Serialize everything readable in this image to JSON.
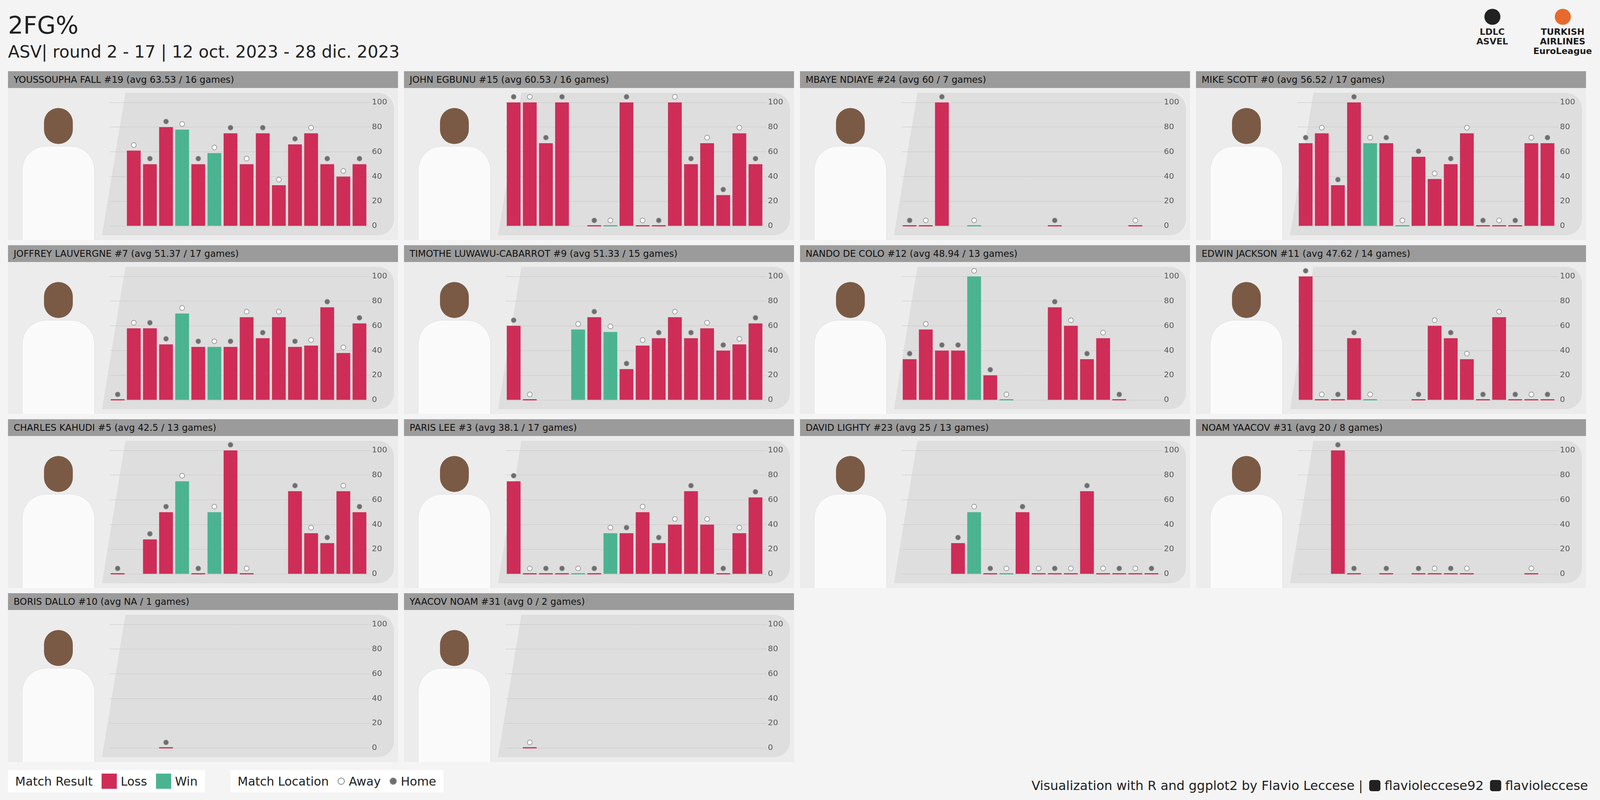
{
  "title": "2FG%",
  "subtitle": "ASV| round 2 - 17 | 12 oct. 2023 - 28 dic. 2023",
  "logos": [
    [
      "LDLC",
      "ASVEL"
    ],
    [
      "TURKISH",
      "AIRLINES",
      "EuroLeague"
    ]
  ],
  "legend_groups": [
    {
      "title": "Match Result",
      "items": [
        {
          "label": "Loss",
          "color": "#CE2D57"
        },
        {
          "label": "Win",
          "color": "#4CB391"
        }
      ]
    },
    {
      "title": "Match Location",
      "items": [
        {
          "label": "Away",
          "marker": "open"
        },
        {
          "label": "Home",
          "marker": "filled"
        }
      ]
    }
  ],
  "caption": {
    "text": "Visualization with R and ggplot2 by Flavio Leccese |",
    "links": [
      "flavioleccese92",
      "flavioleccese"
    ]
  },
  "chart_data": [
    {
      "type": "bar",
      "title": "YOUSSOUPHA FALL #19 (avg 63.53 / 16 games)",
      "categories": [
        null,
        null,
        null,
        null,
        null,
        null,
        null,
        null,
        null,
        null,
        null,
        null,
        null,
        null,
        null,
        null
      ],
      "values": [
        null,
        61,
        50,
        80,
        78,
        50,
        59,
        75,
        50,
        75,
        33,
        66,
        75,
        50,
        40,
        50
      ],
      "colors": [
        null,
        "#CE2D57",
        "#CE2D57",
        "#CE2D57",
        "#4CB391",
        "#CE2D57",
        "#4CB391",
        "#CE2D57",
        "#CE2D57",
        "#CE2D57",
        "#CE2D57",
        "#CE2D57",
        "#CE2D57",
        "#CE2D57",
        "#CE2D57",
        "#CE2D57"
      ],
      "locations": [
        null,
        "Away",
        "Home",
        "Home",
        "Away",
        "Home",
        "Away",
        "Home",
        "Away",
        "Home",
        "Away",
        "Home",
        "Away",
        "Home",
        "Away",
        "Home"
      ],
      "ylim": [
        0,
        100
      ],
      "yticks": [
        0,
        20,
        40,
        60,
        80,
        100
      ],
      "grid": true,
      "tick_labels": "y"
    },
    {
      "type": "bar",
      "title": "JOHN EGBUNU #15 (avg 60.53 / 16 games)",
      "categories": [
        null,
        null,
        null,
        null,
        null,
        null,
        null,
        null,
        null,
        null,
        null,
        null,
        null,
        null,
        null,
        null
      ],
      "values": [
        100,
        100,
        67,
        100,
        null,
        0,
        0,
        100,
        0,
        0,
        100,
        50,
        67,
        25,
        75,
        50
      ],
      "colors": [
        "#CE2D57",
        "#CE2D57",
        "#CE2D57",
        "#CE2D57",
        null,
        "#CE2D57",
        "#4CB391",
        "#CE2D57",
        "#CE2D57",
        "#CE2D57",
        "#CE2D57",
        "#CE2D57",
        "#CE2D57",
        "#CE2D57",
        "#CE2D57",
        "#CE2D57"
      ],
      "locations": [
        "Home",
        "Away",
        "Home",
        "Home",
        null,
        "Home",
        "Away",
        "Home",
        "Away",
        "Home",
        "Away",
        "Home",
        "Away",
        "Home",
        "Away",
        "Home"
      ],
      "ylim": [
        0,
        100
      ],
      "yticks": [
        0,
        20,
        40,
        60,
        80,
        100
      ],
      "grid": true,
      "tick_labels": "y"
    },
    {
      "type": "bar",
      "title": "MBAYE NDIAYE #24 (avg 60 / 7 games)",
      "categories": [
        null,
        null,
        null,
        null,
        null,
        null,
        null,
        null,
        null,
        null,
        null,
        null,
        null,
        null,
        null,
        null
      ],
      "values": [
        0,
        0,
        100,
        null,
        0,
        null,
        null,
        null,
        null,
        0,
        null,
        null,
        null,
        null,
        0,
        null
      ],
      "colors": [
        "#CE2D57",
        "#CE2D57",
        "#CE2D57",
        null,
        "#4CB391",
        null,
        null,
        null,
        null,
        "#CE2D57",
        null,
        null,
        null,
        null,
        "#CE2D57",
        null
      ],
      "locations": [
        "Home",
        "Away",
        "Home",
        null,
        "Away",
        null,
        null,
        null,
        null,
        "Home",
        null,
        null,
        null,
        null,
        "Away",
        null
      ],
      "ylim": [
        0,
        100
      ],
      "yticks": [
        0,
        20,
        40,
        60,
        80,
        100
      ],
      "grid": true,
      "tick_labels": "y"
    },
    {
      "type": "bar",
      "title": "MIKE SCOTT #0 (avg 56.52 / 17 games)",
      "categories": [
        null,
        null,
        null,
        null,
        null,
        null,
        null,
        null,
        null,
        null,
        null,
        null,
        null,
        null,
        null,
        null
      ],
      "values": [
        67,
        75,
        33,
        100,
        67,
        67,
        0,
        56,
        38,
        50,
        75,
        0,
        0,
        0,
        67,
        67
      ],
      "colors": [
        "#CE2D57",
        "#CE2D57",
        "#CE2D57",
        "#CE2D57",
        "#4CB391",
        "#CE2D57",
        "#4CB391",
        "#CE2D57",
        "#CE2D57",
        "#CE2D57",
        "#CE2D57",
        "#CE2D57",
        "#CE2D57",
        "#CE2D57",
        "#CE2D57",
        "#CE2D57"
      ],
      "locations": [
        "Home",
        "Away",
        "Home",
        "Home",
        "Away",
        "Home",
        "Away",
        "Home",
        "Away",
        "Home",
        "Away",
        "Home",
        "Away",
        "Home",
        "Away",
        "Home"
      ],
      "ylim": [
        0,
        100
      ],
      "yticks": [
        0,
        20,
        40,
        60,
        80,
        100
      ],
      "grid": true,
      "tick_labels": "y"
    },
    {
      "type": "bar",
      "title": "JOFFREY LAUVERGNE #7 (avg 51.37 / 17 games)",
      "categories": [
        null,
        null,
        null,
        null,
        null,
        null,
        null,
        null,
        null,
        null,
        null,
        null,
        null,
        null,
        null,
        null
      ],
      "values": [
        0,
        58,
        58,
        45,
        70,
        43,
        43,
        43,
        67,
        50,
        67,
        43,
        44,
        75,
        38,
        62
      ],
      "colors": [
        "#CE2D57",
        "#CE2D57",
        "#CE2D57",
        "#CE2D57",
        "#4CB391",
        "#CE2D57",
        "#4CB391",
        "#CE2D57",
        "#CE2D57",
        "#CE2D57",
        "#CE2D57",
        "#CE2D57",
        "#CE2D57",
        "#CE2D57",
        "#CE2D57",
        "#CE2D57"
      ],
      "locations": [
        "Home",
        "Away",
        "Home",
        "Home",
        "Away",
        "Home",
        "Away",
        "Home",
        "Away",
        "Home",
        "Away",
        "Home",
        "Away",
        "Home",
        "Away",
        "Home"
      ],
      "ylim": [
        0,
        100
      ],
      "yticks": [
        0,
        20,
        40,
        60,
        80,
        100
      ],
      "grid": true,
      "tick_labels": "y"
    },
    {
      "type": "bar",
      "title": "TIMOTHE LUWAWU-CABARROT #9 (avg 51.33 / 15 games)",
      "categories": [
        null,
        null,
        null,
        null,
        null,
        null,
        null,
        null,
        null,
        null,
        null,
        null,
        null,
        null,
        null,
        null
      ],
      "values": [
        60,
        0,
        null,
        null,
        57,
        67,
        55,
        25,
        44,
        50,
        67,
        50,
        58,
        40,
        45,
        62
      ],
      "colors": [
        "#CE2D57",
        "#CE2D57",
        null,
        null,
        "#4CB391",
        "#CE2D57",
        "#4CB391",
        "#CE2D57",
        "#CE2D57",
        "#CE2D57",
        "#CE2D57",
        "#CE2D57",
        "#CE2D57",
        "#CE2D57",
        "#CE2D57",
        "#CE2D57"
      ],
      "locations": [
        "Home",
        "Away",
        null,
        null,
        "Away",
        "Home",
        "Away",
        "Home",
        "Away",
        "Home",
        "Away",
        "Home",
        "Away",
        "Home",
        "Away",
        "Home"
      ],
      "ylim": [
        0,
        100
      ],
      "yticks": [
        0,
        20,
        40,
        60,
        80,
        100
      ],
      "grid": true,
      "tick_labels": "y"
    },
    {
      "type": "bar",
      "title": "NANDO DE COLO #12 (avg 48.94 / 13 games)",
      "categories": [
        null,
        null,
        null,
        null,
        null,
        null,
        null,
        null,
        null,
        null,
        null,
        null,
        null,
        null,
        null,
        null
      ],
      "values": [
        33,
        57,
        40,
        40,
        100,
        20,
        0,
        null,
        null,
        75,
        60,
        33,
        50,
        0,
        null,
        null
      ],
      "colors": [
        "#CE2D57",
        "#CE2D57",
        "#CE2D57",
        "#CE2D57",
        "#4CB391",
        "#CE2D57",
        "#4CB391",
        null,
        null,
        "#CE2D57",
        "#CE2D57",
        "#CE2D57",
        "#CE2D57",
        "#CE2D57",
        null,
        null
      ],
      "locations": [
        "Home",
        "Away",
        "Home",
        "Home",
        "Away",
        "Home",
        "Away",
        null,
        null,
        "Home",
        "Away",
        "Home",
        "Away",
        "Home",
        null,
        null
      ],
      "ylim": [
        0,
        100
      ],
      "yticks": [
        0,
        20,
        40,
        60,
        80,
        100
      ],
      "grid": true,
      "tick_labels": "y"
    },
    {
      "type": "bar",
      "title": "EDWIN JACKSON #11 (avg 47.62 / 14 games)",
      "categories": [
        null,
        null,
        null,
        null,
        null,
        null,
        null,
        null,
        null,
        null,
        null,
        null,
        null,
        null,
        null,
        null
      ],
      "values": [
        100,
        0,
        0,
        50,
        0,
        null,
        null,
        0,
        60,
        50,
        33,
        0,
        67,
        0,
        0,
        0
      ],
      "colors": [
        "#CE2D57",
        "#CE2D57",
        "#CE2D57",
        "#CE2D57",
        "#4CB391",
        null,
        null,
        "#CE2D57",
        "#CE2D57",
        "#CE2D57",
        "#CE2D57",
        "#CE2D57",
        "#CE2D57",
        "#CE2D57",
        "#CE2D57",
        "#CE2D57"
      ],
      "locations": [
        "Home",
        "Away",
        "Home",
        "Home",
        "Away",
        null,
        null,
        "Home",
        "Away",
        "Home",
        "Away",
        "Home",
        "Away",
        "Home",
        "Away",
        "Home"
      ],
      "ylim": [
        0,
        100
      ],
      "yticks": [
        0,
        20,
        40,
        60,
        80,
        100
      ],
      "grid": true,
      "tick_labels": "y"
    },
    {
      "type": "bar",
      "title": "CHARLES KAHUDI #5 (avg 42.5 / 13 games)",
      "categories": [
        null,
        null,
        null,
        null,
        null,
        null,
        null,
        null,
        null,
        null,
        null,
        null,
        null,
        null,
        null,
        null
      ],
      "values": [
        0,
        null,
        28,
        50,
        75,
        0,
        50,
        100,
        0,
        null,
        null,
        67,
        33,
        25,
        67,
        50
      ],
      "colors": [
        "#CE2D57",
        null,
        "#CE2D57",
        "#CE2D57",
        "#4CB391",
        "#CE2D57",
        "#4CB391",
        "#CE2D57",
        "#CE2D57",
        null,
        null,
        "#CE2D57",
        "#CE2D57",
        "#CE2D57",
        "#CE2D57",
        "#CE2D57"
      ],
      "locations": [
        "Home",
        null,
        "Home",
        "Home",
        "Away",
        "Home",
        "Away",
        "Home",
        "Away",
        null,
        null,
        "Home",
        "Away",
        "Home",
        "Away",
        "Home"
      ],
      "ylim": [
        0,
        100
      ],
      "yticks": [
        0,
        20,
        40,
        60,
        80,
        100
      ],
      "grid": true,
      "tick_labels": "y"
    },
    {
      "type": "bar",
      "title": "PARIS LEE #3 (avg 38.1 / 17 games)",
      "categories": [
        null,
        null,
        null,
        null,
        null,
        null,
        null,
        null,
        null,
        null,
        null,
        null,
        null,
        null,
        null,
        null
      ],
      "values": [
        75,
        0,
        0,
        0,
        0,
        0,
        33,
        33,
        50,
        25,
        40,
        67,
        40,
        0,
        33,
        62
      ],
      "colors": [
        "#CE2D57",
        "#CE2D57",
        "#CE2D57",
        "#CE2D57",
        "#4CB391",
        "#CE2D57",
        "#4CB391",
        "#CE2D57",
        "#CE2D57",
        "#CE2D57",
        "#CE2D57",
        "#CE2D57",
        "#CE2D57",
        "#CE2D57",
        "#CE2D57",
        "#CE2D57"
      ],
      "locations": [
        "Home",
        "Away",
        "Home",
        "Home",
        "Away",
        "Home",
        "Away",
        "Home",
        "Away",
        "Home",
        "Away",
        "Home",
        "Away",
        "Home",
        "Away",
        "Home"
      ],
      "ylim": [
        0,
        100
      ],
      "yticks": [
        0,
        20,
        40,
        60,
        80,
        100
      ],
      "grid": true,
      "tick_labels": "y"
    },
    {
      "type": "bar",
      "title": "DAVID LIGHTY #23 (avg 25 / 13 games)",
      "categories": [
        null,
        null,
        null,
        null,
        null,
        null,
        null,
        null,
        null,
        null,
        null,
        null,
        null,
        null,
        null,
        null
      ],
      "values": [
        null,
        null,
        null,
        25,
        50,
        0,
        0,
        50,
        0,
        0,
        0,
        67,
        0,
        0,
        0,
        0
      ],
      "colors": [
        null,
        null,
        null,
        "#CE2D57",
        "#4CB391",
        "#CE2D57",
        "#4CB391",
        "#CE2D57",
        "#CE2D57",
        "#CE2D57",
        "#CE2D57",
        "#CE2D57",
        "#CE2D57",
        "#CE2D57",
        "#CE2D57",
        "#CE2D57"
      ],
      "locations": [
        null,
        null,
        null,
        "Home",
        "Away",
        "Home",
        "Away",
        "Home",
        "Away",
        "Home",
        "Away",
        "Home",
        "Away",
        "Home",
        "Away",
        "Home"
      ],
      "ylim": [
        0,
        100
      ],
      "yticks": [
        0,
        20,
        40,
        60,
        80,
        100
      ],
      "grid": true,
      "tick_labels": "y"
    },
    {
      "type": "bar",
      "title": "NOAM YAACOV #31 (avg 20 / 8 games)",
      "categories": [
        null,
        null,
        null,
        null,
        null,
        null,
        null,
        null,
        null,
        null,
        null,
        null,
        null,
        null,
        null,
        null
      ],
      "values": [
        null,
        null,
        100,
        0,
        null,
        0,
        null,
        0,
        0,
        0,
        0,
        null,
        null,
        null,
        0,
        null
      ],
      "colors": [
        null,
        null,
        "#CE2D57",
        "#CE2D57",
        null,
        "#CE2D57",
        null,
        "#CE2D57",
        "#CE2D57",
        "#CE2D57",
        "#CE2D57",
        null,
        null,
        null,
        "#CE2D57",
        null
      ],
      "locations": [
        null,
        null,
        "Home",
        "Home",
        null,
        "Home",
        null,
        "Home",
        "Away",
        "Home",
        "Away",
        null,
        null,
        null,
        "Away",
        null
      ],
      "ylim": [
        0,
        100
      ],
      "yticks": [
        0,
        20,
        40,
        60,
        80,
        100
      ],
      "grid": true,
      "tick_labels": "y"
    },
    {
      "type": "bar",
      "title": "BORIS DALLO #10 (avg NA / 1 games)",
      "categories": [
        null,
        null,
        null,
        null,
        null,
        null,
        null,
        null,
        null,
        null,
        null,
        null,
        null,
        null,
        null,
        null
      ],
      "values": [
        null,
        null,
        null,
        0,
        null,
        null,
        null,
        null,
        null,
        null,
        null,
        null,
        null,
        null,
        null,
        null
      ],
      "colors": [
        null,
        null,
        null,
        "#CE2D57",
        null,
        null,
        null,
        null,
        null,
        null,
        null,
        null,
        null,
        null,
        null,
        null
      ],
      "locations": [
        null,
        null,
        null,
        "Home",
        null,
        null,
        null,
        null,
        null,
        null,
        null,
        null,
        null,
        null,
        null,
        null
      ],
      "ylim": [
        0,
        100
      ],
      "yticks": [
        0,
        20,
        40,
        60,
        80,
        100
      ],
      "grid": true,
      "tick_labels": "y"
    },
    {
      "type": "bar",
      "title": "YAACOV NOAM #31 (avg 0 / 2 games)",
      "categories": [
        null,
        null,
        null,
        null,
        null,
        null,
        null,
        null,
        null,
        null,
        null,
        null,
        null,
        null,
        null,
        null
      ],
      "values": [
        null,
        0,
        null,
        null,
        null,
        null,
        null,
        null,
        null,
        null,
        null,
        null,
        null,
        null,
        null,
        null
      ],
      "colors": [
        null,
        "#CE2D57",
        null,
        null,
        null,
        null,
        null,
        null,
        null,
        null,
        null,
        null,
        null,
        null,
        null,
        null
      ],
      "locations": [
        null,
        "Away",
        null,
        null,
        null,
        null,
        null,
        null,
        null,
        null,
        null,
        null,
        null,
        null,
        null,
        null
      ],
      "ylim": [
        0,
        100
      ],
      "yticks": [
        0,
        20,
        40,
        60,
        80,
        100
      ],
      "grid": true,
      "tick_labels": "y"
    }
  ]
}
